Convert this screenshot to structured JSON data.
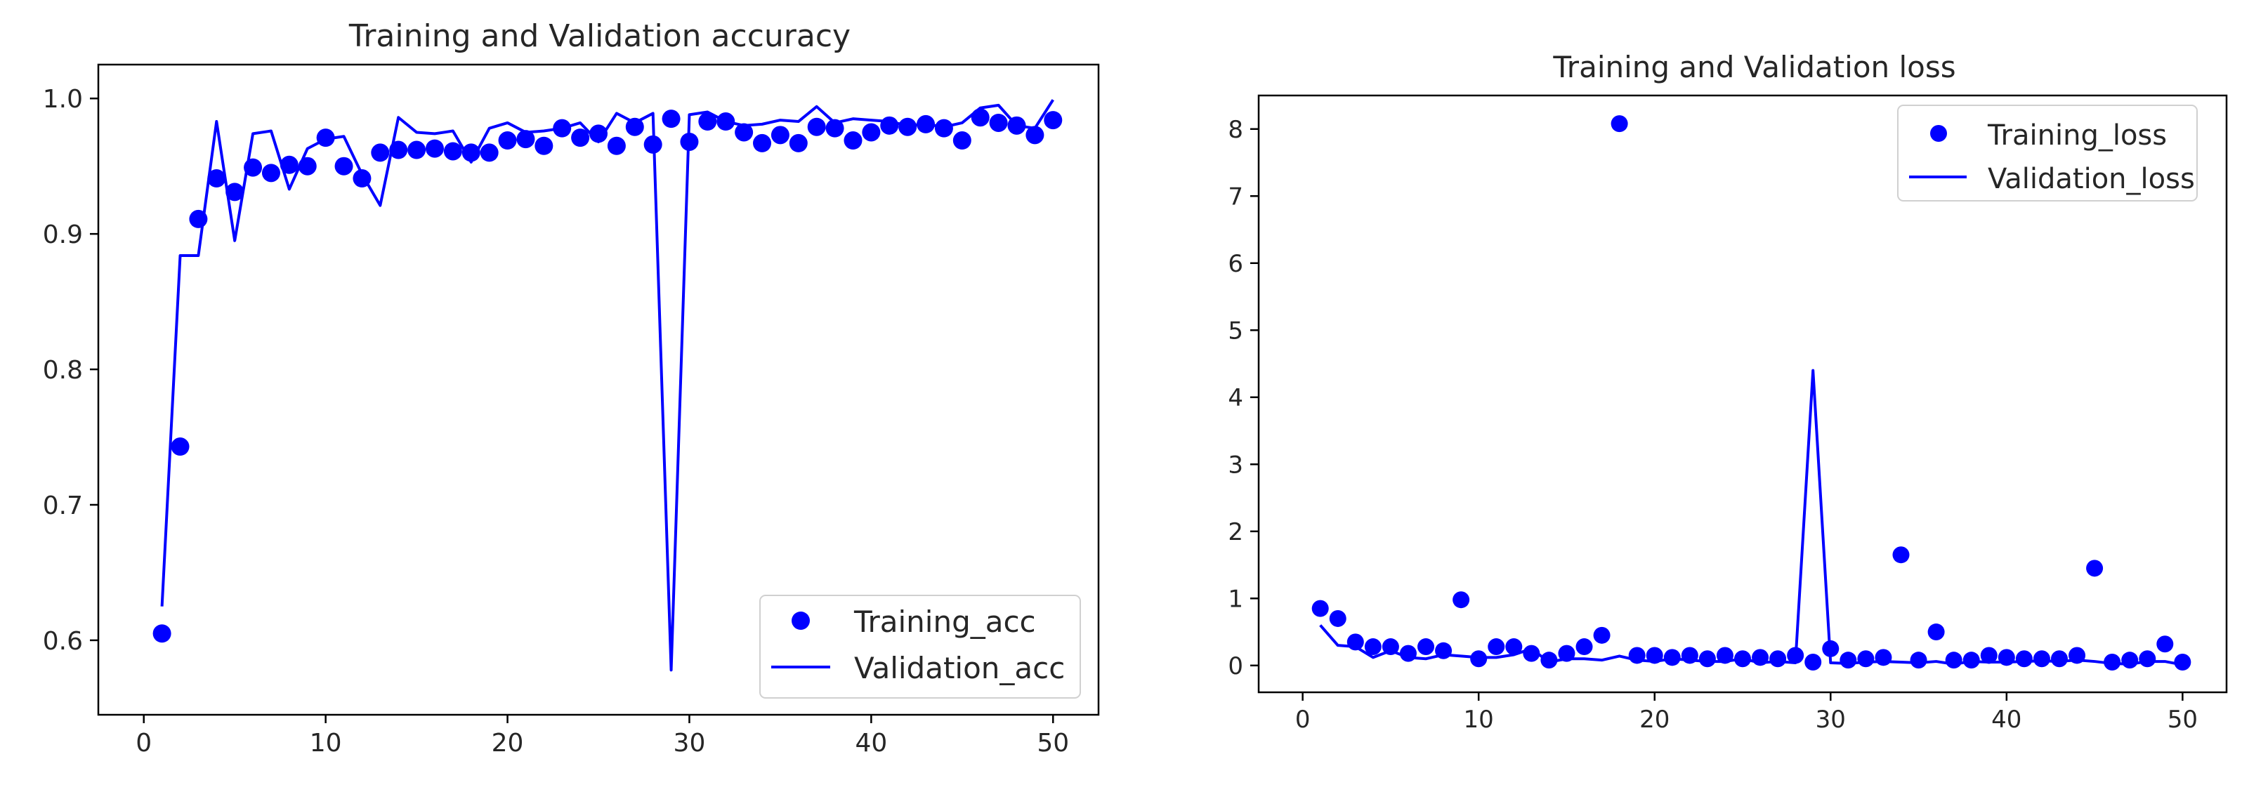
{
  "colors": {
    "series": "#0000ff",
    "axis": "#000000",
    "text": "#262626",
    "legend_border": "#d0d0d0"
  },
  "chart_data": [
    {
      "type": "line",
      "title": "Training and Validation accuracy",
      "xlabel": "",
      "ylabel": "",
      "xlim": [
        -2.5,
        52.5
      ],
      "ylim": [
        0.545,
        1.025
      ],
      "xticks": [
        0,
        10,
        20,
        30,
        40,
        50
      ],
      "xtick_labels": [
        "0",
        "10",
        "20",
        "30",
        "40",
        "50"
      ],
      "yticks": [
        0.6,
        0.7,
        0.8,
        0.9,
        1.0
      ],
      "ytick_labels": [
        "0.6",
        "0.7",
        "0.8",
        "0.9",
        "1.0"
      ],
      "grid": false,
      "legend_position": "lower-right",
      "x": [
        1,
        2,
        3,
        4,
        5,
        6,
        7,
        8,
        9,
        10,
        11,
        12,
        13,
        14,
        15,
        16,
        17,
        18,
        19,
        20,
        21,
        22,
        23,
        24,
        25,
        26,
        27,
        28,
        29,
        30,
        31,
        32,
        33,
        34,
        35,
        36,
        37,
        38,
        39,
        40,
        41,
        42,
        43,
        44,
        45,
        46,
        47,
        48,
        49,
        50
      ],
      "series": [
        {
          "name": "Training_acc",
          "style": "dots",
          "values": [
            0.605,
            0.743,
            0.911,
            0.941,
            0.931,
            0.949,
            0.945,
            0.951,
            0.95,
            0.971,
            0.95,
            0.941,
            0.96,
            0.962,
            0.962,
            0.963,
            0.961,
            0.96,
            0.96,
            0.969,
            0.97,
            0.965,
            0.978,
            0.971,
            0.974,
            0.965,
            0.979,
            0.966,
            0.985,
            0.968,
            0.983,
            0.983,
            0.975,
            0.967,
            0.973,
            0.967,
            0.979,
            0.978,
            0.969,
            0.975,
            0.98,
            0.979,
            0.981,
            0.978,
            0.969,
            0.986,
            0.982,
            0.98,
            0.973,
            0.984
          ]
        },
        {
          "name": "Validation_acc",
          "style": "line",
          "values": [
            0.625,
            0.884,
            0.884,
            0.983,
            0.895,
            0.974,
            0.976,
            0.933,
            0.963,
            0.97,
            0.972,
            0.944,
            0.921,
            0.986,
            0.975,
            0.974,
            0.976,
            0.953,
            0.978,
            0.982,
            0.975,
            0.976,
            0.978,
            0.982,
            0.968,
            0.989,
            0.982,
            0.989,
            0.578,
            0.988,
            0.99,
            0.983,
            0.98,
            0.981,
            0.984,
            0.983,
            0.994,
            0.982,
            0.985,
            0.984,
            0.983,
            0.98,
            0.981,
            0.979,
            0.982,
            0.993,
            0.995,
            0.98,
            0.978,
            0.999
          ]
        }
      ]
    },
    {
      "type": "line",
      "title": "Training and Validation loss",
      "xlabel": "",
      "ylabel": "",
      "xlim": [
        -2.5,
        52.5
      ],
      "ylim": [
        -0.4,
        8.5
      ],
      "xticks": [
        0,
        10,
        20,
        30,
        40,
        50
      ],
      "xtick_labels": [
        "0",
        "10",
        "20",
        "30",
        "40",
        "50"
      ],
      "yticks": [
        0,
        1,
        2,
        3,
        4,
        5,
        6,
        7,
        8
      ],
      "ytick_labels": [
        "0",
        "1",
        "2",
        "3",
        "4",
        "5",
        "6",
        "7",
        "8"
      ],
      "grid": false,
      "legend_position": "upper-right",
      "x": [
        1,
        2,
        3,
        4,
        5,
        6,
        7,
        8,
        9,
        10,
        11,
        12,
        13,
        14,
        15,
        16,
        17,
        18,
        19,
        20,
        21,
        22,
        23,
        24,
        25,
        26,
        27,
        28,
        29,
        30,
        31,
        32,
        33,
        34,
        35,
        36,
        37,
        38,
        39,
        40,
        41,
        42,
        43,
        44,
        45,
        46,
        47,
        48,
        49,
        50
      ],
      "series": [
        {
          "name": "Training_loss",
          "style": "dots",
          "values": [
            0.85,
            0.7,
            0.35,
            0.28,
            0.28,
            0.18,
            0.28,
            0.22,
            0.98,
            0.1,
            0.28,
            0.28,
            0.18,
            0.08,
            0.18,
            0.28,
            0.45,
            8.08,
            0.15,
            0.15,
            0.12,
            0.15,
            0.1,
            0.15,
            0.1,
            0.12,
            0.1,
            0.15,
            0.05,
            0.25,
            0.08,
            0.1,
            0.12,
            1.65,
            0.08,
            0.5,
            0.08,
            0.08,
            0.15,
            0.12,
            0.1,
            0.1,
            0.1,
            0.15,
            1.45,
            0.05,
            0.08,
            0.1,
            0.32,
            0.05
          ]
        },
        {
          "name": "Validation_loss",
          "style": "line",
          "values": [
            0.6,
            0.3,
            0.28,
            0.12,
            0.22,
            0.12,
            0.1,
            0.16,
            0.14,
            0.12,
            0.12,
            0.16,
            0.25,
            0.05,
            0.1,
            0.1,
            0.08,
            0.14,
            0.08,
            0.06,
            0.1,
            0.08,
            0.06,
            0.06,
            0.1,
            0.04,
            0.06,
            0.04,
            4.4,
            0.04,
            0.03,
            0.05,
            0.06,
            0.05,
            0.04,
            0.06,
            0.02,
            0.06,
            0.05,
            0.05,
            0.06,
            0.07,
            0.06,
            0.08,
            0.06,
            0.03,
            0.02,
            0.06,
            0.06,
            0.01
          ]
        }
      ]
    }
  ]
}
